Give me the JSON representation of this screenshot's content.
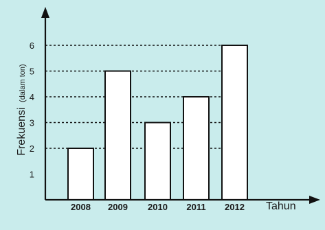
{
  "chart_data": {
    "type": "bar",
    "categories": [
      "2008",
      "2009",
      "2010",
      "2011",
      "2012"
    ],
    "values": [
      2,
      5,
      3,
      4,
      6
    ],
    "title": "",
    "xlabel": "Tahun",
    "ylabel": "Frekuensi",
    "ylabel_unit": "(dalam ton)",
    "ylim": [
      0,
      6
    ],
    "yticks": [
      1,
      2,
      3,
      4,
      5,
      6
    ],
    "grid": false,
    "dashed_guides": true,
    "colors": {
      "background": "#c9ecec",
      "bar_fill": "#ffffff",
      "stroke": "#111111"
    }
  }
}
